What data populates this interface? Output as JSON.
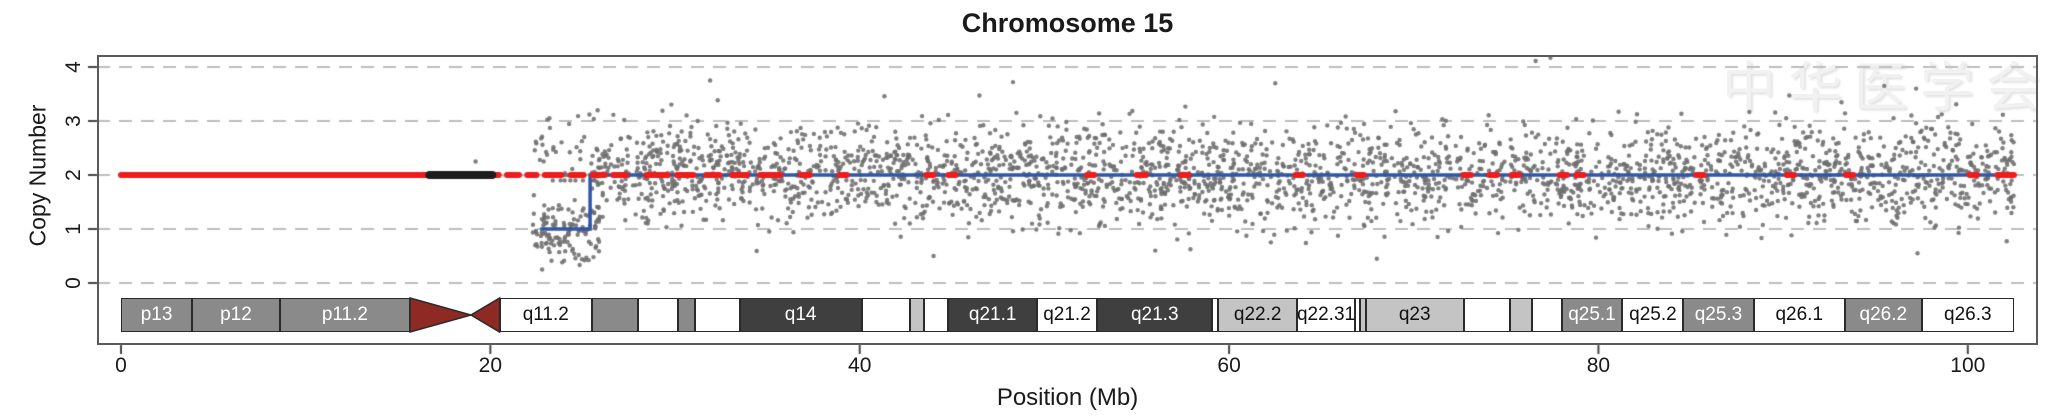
{
  "title": "Chromosome 15",
  "watermark": {
    "text": "中华医学会",
    "icon": "seal-logo"
  },
  "chart_data": {
    "type": "scatter",
    "title": "Chromosome 15",
    "xlabel": "Position (Mb)",
    "ylabel": "Copy Number",
    "xlim": [
      0,
      102.5
    ],
    "ylim": [
      0,
      4.3
    ],
    "x_ticks": [
      0,
      20,
      40,
      60,
      80,
      100
    ],
    "y_ticks": [
      0,
      1,
      2,
      3,
      4
    ],
    "grid": "horizontal dashed gridlines at each y tick",
    "legend": "none",
    "scatter_points": {
      "marker": "small dark-gray dot",
      "seed": 15,
      "clusters": [
        {
          "name": "main-diploid-cloud",
          "n": 2900,
          "x_range": [
            25.7,
            102.5
          ],
          "y_mean": 2.0,
          "y_sd": 0.45,
          "y_clip": [
            0.55,
            3.65
          ]
        },
        {
          "name": "deletion-dip",
          "n": 130,
          "x_range": [
            22.3,
            25.9
          ],
          "y_mean": 0.95,
          "y_sd": 0.33,
          "y_clip": [
            0.25,
            1.75
          ]
        },
        {
          "name": "dip-upper-scatter",
          "n": 45,
          "x_range": [
            22.4,
            26.0
          ],
          "y_mean": 2.35,
          "y_sd": 0.45,
          "y_clip": [
            1.9,
            3.2
          ]
        }
      ],
      "outliers": [
        [
          76.6,
          4.11
        ],
        [
          77.4,
          4.17
        ],
        [
          31.9,
          3.75
        ],
        [
          62.5,
          3.7
        ],
        [
          48.3,
          3.72
        ],
        [
          97.2,
          3.6
        ],
        [
          23.2,
          3.05
        ],
        [
          68.0,
          0.45
        ],
        [
          56.0,
          0.6
        ],
        [
          44.0,
          0.5
        ],
        [
          19.2,
          2.25
        ]
      ]
    },
    "segments": {
      "red_calls_cn2_solid": [
        [
          0.0,
          19.45
        ]
      ],
      "red_calls_cn2_dashes": [
        [
          19.8,
          20.45
        ],
        [
          20.9,
          21.55
        ],
        [
          22.0,
          22.5
        ],
        [
          22.95,
          23.85
        ],
        [
          24.35,
          25.05
        ],
        [
          25.55,
          26.2
        ],
        [
          26.65,
          27.35
        ],
        [
          28.45,
          29.6
        ],
        [
          30.1,
          31.0
        ],
        [
          31.7,
          32.4
        ],
        [
          33.1,
          33.9
        ],
        [
          34.6,
          35.7
        ],
        [
          36.8,
          37.3
        ],
        [
          38.9,
          39.3
        ],
        [
          43.6,
          44.0
        ],
        [
          44.8,
          45.2
        ],
        [
          52.3,
          52.7
        ],
        [
          55.0,
          55.5
        ],
        [
          57.4,
          57.8
        ],
        [
          63.6,
          64.0
        ],
        [
          66.9,
          67.3
        ],
        [
          72.7,
          73.1
        ],
        [
          74.1,
          74.5
        ],
        [
          75.3,
          75.7
        ],
        [
          77.9,
          78.3
        ],
        [
          78.8,
          79.2
        ],
        [
          85.3,
          85.7
        ],
        [
          90.2,
          90.6
        ],
        [
          93.4,
          93.8
        ],
        [
          100.1,
          100.5
        ],
        [
          101.6,
          102.5
        ]
      ],
      "black_segment_cn2": [
        16.7,
        20.1
      ],
      "blue_segmentation": [
        {
          "from": 22.7,
          "to": 25.4,
          "cn": 1
        },
        {
          "from": 25.4,
          "to": 102.5,
          "cn": 2
        }
      ]
    },
    "ideogram": {
      "chromosome": "15",
      "centromere": {
        "start": 15.65,
        "mid": 18.95,
        "end": 20.5,
        "color": "#8e2a23"
      },
      "bands": [
        {
          "label": "p13",
          "start": 0.0,
          "end": 3.85,
          "shade": "gray"
        },
        {
          "label": "p12",
          "start": 3.85,
          "end": 8.6,
          "shade": "gray"
        },
        {
          "label": "p11.2",
          "start": 8.6,
          "end": 15.65,
          "shade": "gray"
        },
        {
          "label": "q11.2",
          "start": 20.5,
          "end": 25.5,
          "shade": "white"
        },
        {
          "label": "",
          "start": 25.5,
          "end": 28.0,
          "shade": "gray"
        },
        {
          "label": "",
          "start": 28.0,
          "end": 30.15,
          "shade": "white"
        },
        {
          "label": "",
          "start": 30.15,
          "end": 31.1,
          "shade": "gray"
        },
        {
          "label": "",
          "start": 31.1,
          "end": 33.5,
          "shade": "white"
        },
        {
          "label": "q14",
          "start": 33.5,
          "end": 40.1,
          "shade": "dark"
        },
        {
          "label": "",
          "start": 40.1,
          "end": 42.7,
          "shade": "white"
        },
        {
          "label": "",
          "start": 42.7,
          "end": 43.5,
          "shade": "light"
        },
        {
          "label": "",
          "start": 43.5,
          "end": 44.8,
          "shade": "white"
        },
        {
          "label": "q21.1",
          "start": 44.8,
          "end": 49.6,
          "shade": "dark"
        },
        {
          "label": "q21.2",
          "start": 49.6,
          "end": 52.85,
          "shade": "white"
        },
        {
          "label": "q21.3",
          "start": 52.85,
          "end": 59.1,
          "shade": "dark"
        },
        {
          "label": "",
          "start": 59.1,
          "end": 59.4,
          "shade": "white"
        },
        {
          "label": "q22.2",
          "start": 59.4,
          "end": 63.7,
          "shade": "light"
        },
        {
          "label": "q22.31",
          "start": 63.7,
          "end": 66.8,
          "shade": "white"
        },
        {
          "label": "",
          "start": 66.8,
          "end": 67.1,
          "shade": "white"
        },
        {
          "label": "",
          "start": 67.1,
          "end": 67.4,
          "shade": "light"
        },
        {
          "label": "q23",
          "start": 67.4,
          "end": 72.7,
          "shade": "light"
        },
        {
          "label": "",
          "start": 72.7,
          "end": 75.2,
          "shade": "white"
        },
        {
          "label": "",
          "start": 75.2,
          "end": 76.4,
          "shade": "light"
        },
        {
          "label": "",
          "start": 76.4,
          "end": 78.0,
          "shade": "white"
        },
        {
          "label": "q25.1",
          "start": 78.0,
          "end": 81.3,
          "shade": "gray"
        },
        {
          "label": "q25.2",
          "start": 81.3,
          "end": 84.6,
          "shade": "white"
        },
        {
          "label": "q25.3",
          "start": 84.6,
          "end": 88.4,
          "shade": "gray"
        },
        {
          "label": "q26.1",
          "start": 88.4,
          "end": 93.35,
          "shade": "white"
        },
        {
          "label": "q26.2",
          "start": 93.35,
          "end": 97.5,
          "shade": "gray"
        },
        {
          "label": "q26.3",
          "start": 97.5,
          "end": 102.5,
          "shade": "white"
        }
      ]
    }
  },
  "colors": {
    "red_line": "#ee1c1c",
    "blue_line": "#3156a5",
    "black_segment": "#1c1c1c",
    "point": "#6e6e6e",
    "gridline": "#bdbdbd",
    "axis": "#444444",
    "centromere": "#8e2a23"
  }
}
